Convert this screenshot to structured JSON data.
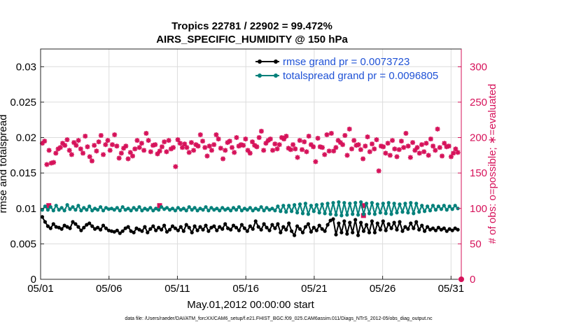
{
  "chart_data": {
    "type": "line",
    "title_line1": "Tropics 22781 / 22902 = 99.472%",
    "title_line2": "AIRS_SPECIFIC_HUMIDITY @ 150 hPa",
    "xlabel": "May.01,2012 00:00:00 start",
    "ylabel_left": "rmse and totalspread",
    "ylabel_right": "# of obs: o=possible; ∗=evaluated",
    "footer": "data file: /Users/raeder/DAI/ATM_forcXX/CAM6_setup/f.e21.FHIST_BGC.f09_025.CAM6assim.011/Diags_NTrS_2012-05/obs_diag_output.nc",
    "x_ticks": [
      "05/01",
      "05/06",
      "05/11",
      "05/16",
      "05/21",
      "05/26",
      "05/31"
    ],
    "x_tick_days": [
      0,
      5,
      10,
      15,
      20,
      25,
      30
    ],
    "xlim": [
      0,
      30.75
    ],
    "ylim_left": [
      0,
      0.0325
    ],
    "y_ticks_left": [
      "0",
      "0.005",
      "0.01",
      "0.015",
      "0.02",
      "0.025",
      "0.03"
    ],
    "ylim_right": [
      0,
      325
    ],
    "y_ticks_right": [
      "0",
      "50",
      "100",
      "150",
      "200",
      "250",
      "300"
    ],
    "grid": true,
    "legend_position": "top-right",
    "colors": {
      "rmse": "#000000",
      "totalspread": "#00807a",
      "obs": "#d6125a"
    },
    "series": [
      {
        "name": "rmse grand pr = 0.0073723",
        "key": "rmse",
        "values": [
          0.0088,
          0.0081,
          0.0075,
          0.0072,
          0.0078,
          0.0074,
          0.0073,
          0.0071,
          0.0076,
          0.0074,
          0.0072,
          0.0081,
          0.0078,
          0.0074,
          0.0069,
          0.0073,
          0.0077,
          0.0079,
          0.0075,
          0.0071,
          0.0073,
          0.007,
          0.0076,
          0.0072,
          0.0069,
          0.0068,
          0.0067,
          0.0069,
          0.0065,
          0.0068,
          0.0072,
          0.0074,
          0.0068,
          0.0066,
          0.0072,
          0.007,
          0.0068,
          0.0074,
          0.0066,
          0.0071,
          0.0075,
          0.0069,
          0.0073,
          0.007,
          0.0076,
          0.0067,
          0.007,
          0.0075,
          0.0072,
          0.0069,
          0.0074,
          0.0068,
          0.0077,
          0.0073,
          0.0066,
          0.0075,
          0.0069,
          0.0074,
          0.007,
          0.0076,
          0.0068,
          0.0073,
          0.0075,
          0.0069,
          0.0074,
          0.0071,
          0.0078,
          0.0072,
          0.007,
          0.0076,
          0.0073,
          0.0069,
          0.0077,
          0.0072,
          0.0068,
          0.0075,
          0.0071,
          0.0082,
          0.0074,
          0.007,
          0.0078,
          0.0073,
          0.0069,
          0.0077,
          0.0072,
          0.0078,
          0.0066,
          0.0074,
          0.007,
          0.0079,
          0.0068,
          0.0062,
          0.0075,
          0.0071,
          0.0066,
          0.0074,
          0.0078,
          0.0067,
          0.0073,
          0.0069,
          0.0076,
          0.0071,
          0.0068,
          0.0077,
          0.0083,
          0.0085,
          0.0063,
          0.0079,
          0.0066,
          0.0082,
          0.0064,
          0.008,
          0.0066,
          0.0084,
          0.0062,
          0.008,
          0.0068,
          0.0077,
          0.0066,
          0.0082,
          0.0066,
          0.0079,
          0.007,
          0.0082,
          0.0069,
          0.0078,
          0.0072,
          0.008,
          0.007,
          0.0081,
          0.0068,
          0.0074,
          0.0071,
          0.0079,
          0.0072,
          0.0081,
          0.007,
          0.0076,
          0.0068,
          0.0074,
          0.007,
          0.0072,
          0.0069,
          0.0073,
          0.007,
          0.0072,
          0.0068,
          0.0071,
          0.0069,
          0.0072,
          0.007
        ]
      },
      {
        "name": "totalspread grand pr = 0.0096805",
        "key": "totalspread",
        "values": [
          0.0098,
          0.0103,
          0.0098,
          0.0102,
          0.0097,
          0.0104,
          0.0098,
          0.0101,
          0.0097,
          0.0105,
          0.0099,
          0.0102,
          0.0098,
          0.0104,
          0.0097,
          0.0101,
          0.0098,
          0.0103,
          0.0097,
          0.01,
          0.0098,
          0.0102,
          0.0097,
          0.0101,
          0.0099,
          0.01,
          0.0098,
          0.0101,
          0.0097,
          0.0102,
          0.0098,
          0.01,
          0.0097,
          0.0101,
          0.0098,
          0.0102,
          0.0097,
          0.01,
          0.0098,
          0.0101,
          0.0097,
          0.01,
          0.0098,
          0.0102,
          0.0099,
          0.0101,
          0.0098,
          0.01,
          0.0097,
          0.0101,
          0.0098,
          0.01,
          0.0097,
          0.0102,
          0.0098,
          0.0101,
          0.0097,
          0.01,
          0.0098,
          0.0102,
          0.0097,
          0.0101,
          0.0098,
          0.01,
          0.0097,
          0.0101,
          0.0098,
          0.01,
          0.0097,
          0.0101,
          0.0098,
          0.0102,
          0.0097,
          0.01,
          0.0098,
          0.0101,
          0.0097,
          0.01,
          0.0098,
          0.0102,
          0.0097,
          0.0101,
          0.0098,
          0.01,
          0.0097,
          0.0103,
          0.0096,
          0.0104,
          0.0095,
          0.0104,
          0.0096,
          0.0105,
          0.0094,
          0.0106,
          0.0093,
          0.0107,
          0.0092,
          0.0104,
          0.0096,
          0.0105,
          0.0094,
          0.0106,
          0.0093,
          0.0107,
          0.0092,
          0.0108,
          0.0091,
          0.0109,
          0.009,
          0.0108,
          0.0091,
          0.0107,
          0.0092,
          0.0108,
          0.0091,
          0.0109,
          0.0092,
          0.0107,
          0.0093,
          0.0108,
          0.0092,
          0.0106,
          0.0094,
          0.0107,
          0.0093,
          0.0108,
          0.0092,
          0.0107,
          0.0094,
          0.0106,
          0.0095,
          0.0107,
          0.0094,
          0.0108,
          0.0093,
          0.0107,
          0.0095,
          0.0104,
          0.0096,
          0.0103,
          0.0097,
          0.0104,
          0.0098,
          0.0103,
          0.0099,
          0.0104,
          0.0098,
          0.0103,
          0.0099,
          0.0104,
          0.01
        ]
      }
    ],
    "obs_evaluated": [
      192,
      195,
      162,
      182,
      164,
      165,
      178,
      184,
      186,
      192,
      189,
      197,
      182,
      176,
      193,
      189,
      196,
      184,
      178,
      202,
      187,
      173,
      167,
      189,
      181,
      194,
      203,
      176,
      190,
      196,
      182,
      190,
      204,
      188,
      171,
      178,
      185,
      188,
      170,
      179,
      174,
      184,
      196,
      186,
      192,
      182,
      206,
      196,
      180,
      189,
      190,
      177,
      181,
      187,
      194,
      180,
      196,
      184,
      186,
      159,
      197,
      192,
      186,
      191,
      186,
      179,
      193,
      182,
      190,
      188,
      204,
      195,
      186,
      174,
      188,
      182,
      190,
      204,
      198,
      185,
      170,
      182,
      193,
      195,
      186,
      179,
      200,
      188,
      190,
      189,
      198,
      182,
      178,
      194,
      189,
      187,
      200,
      209,
      182,
      192,
      196,
      198,
      182,
      191,
      184,
      190,
      200,
      198,
      202,
      185,
      183,
      190,
      184,
      172,
      196,
      183,
      194,
      180,
      202,
      190,
      187,
      166,
      199,
      187,
      186,
      176,
      204,
      181,
      206,
      181,
      186,
      196,
      193,
      190,
      203,
      175,
      212,
      184,
      196,
      189,
      190,
      183,
      170,
      188,
      201,
      180,
      191,
      184,
      197,
      153,
      188,
      187,
      178,
      192,
      175,
      196,
      184,
      173,
      183,
      195,
      186,
      206,
      188,
      172,
      193,
      182,
      186,
      178,
      190,
      180,
      192,
      175,
      198,
      188,
      182,
      212,
      186,
      174,
      192,
      187,
      188,
      173,
      178,
      184,
      179
    ],
    "obs_possible_outliers": [
      {
        "day": 0.6,
        "value": 104
      },
      {
        "day": 8.7,
        "value": 104
      },
      {
        "day": 23.6,
        "value": 104
      },
      {
        "day": 23.6,
        "value": 90
      }
    ]
  }
}
